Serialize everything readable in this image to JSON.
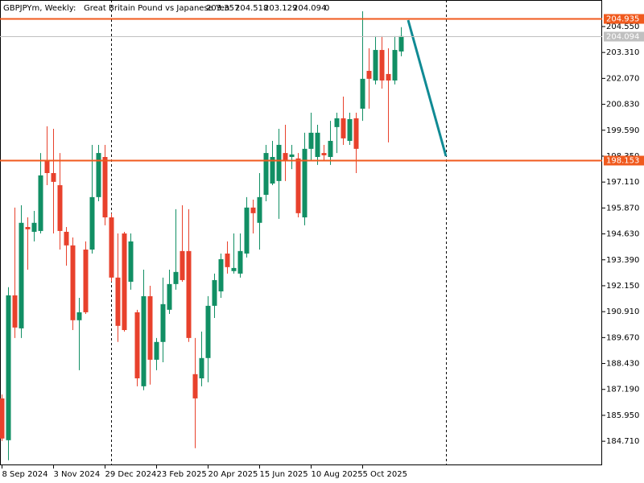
{
  "chart_data": {
    "type": "candlestick",
    "symbol": "GBPJPYm, Weekly:",
    "description": "Great Britain Pound vs Japanese Yen",
    "quote": [
      203.357,
      204.518,
      203.129,
      204.094
    ],
    "volume": 0,
    "up_color": "#118f64",
    "down_color": "#e8412c",
    "categories": [
      "8 Sep 2024",
      null,
      null,
      null,
      null,
      null,
      null,
      null,
      "3 Nov 2024",
      null,
      null,
      null,
      null,
      null,
      null,
      null,
      "29 Dec 2024",
      null,
      null,
      null,
      null,
      null,
      null,
      null,
      "23 Feb 2025",
      null,
      null,
      null,
      null,
      null,
      null,
      null,
      "20 Apr 2025",
      null,
      null,
      null,
      null,
      null,
      null,
      null,
      "15 Jun 2025",
      null,
      null,
      null,
      null,
      null,
      null,
      null,
      "10 Aug 2025",
      null,
      null,
      null,
      null,
      null,
      null,
      null,
      "5 Oct 2025",
      null,
      null,
      null,
      null,
      null,
      null
    ],
    "open": [
      186.76,
      184.76,
      191.69,
      190.11,
      194.96,
      194.73,
      194.77,
      198.12,
      197.54,
      196.96,
      194.73,
      194.08,
      190.5,
      193.88,
      193.88,
      196.39,
      198.31,
      195.42,
      192.54,
      194.65,
      192.34,
      190.88,
      187.34,
      191.65,
      188.61,
      189.46,
      191.0,
      192.23,
      193.81,
      193.81,
      187.92,
      187.72,
      188.69,
      191.19,
      191.88,
      193.69,
      192.85,
      192.73,
      193.69,
      195.89,
      195.16,
      196.5,
      197.04,
      197.16,
      198.5,
      198.31,
      198.24,
      195.42,
      198.7,
      198.31,
      198.5,
      198.31,
      199.74,
      200.16,
      199.08,
      200.16,
      200.62,
      202.43,
      201.97,
      203.43,
      202.28,
      201.97,
      203.357
    ],
    "high": [
      186.95,
      192.08,
      195.89,
      196.0,
      195.42,
      195.73,
      198.5,
      199.78,
      199.66,
      198.5,
      194.96,
      194.46,
      191.57,
      194.27,
      198.89,
      198.89,
      198.89,
      195.62,
      194.65,
      194.73,
      194.65,
      191.0,
      192.92,
      192.15,
      189.65,
      192.54,
      192.92,
      195.81,
      196.0,
      195.81,
      189.65,
      189.96,
      191.65,
      192.73,
      193.69,
      194.27,
      194.65,
      194.65,
      196.39,
      196.27,
      197.54,
      198.89,
      199.08,
      199.66,
      199.85,
      198.89,
      198.5,
      199.47,
      200.43,
      199.85,
      198.89,
      200.04,
      200.43,
      201.2,
      200.43,
      200.43,
      205.28,
      203.51,
      204.09,
      204.09,
      203.51,
      204.09,
      204.518
    ],
    "low": [
      184.72,
      183.8,
      189.65,
      189.65,
      192.92,
      194.27,
      194.65,
      196.96,
      194.65,
      193.88,
      193.11,
      190.03,
      188.11,
      190.8,
      193.69,
      196.19,
      195.04,
      192.34,
      189.46,
      189.96,
      191.96,
      187.34,
      187.15,
      187.42,
      188.11,
      188.49,
      190.8,
      191.96,
      192.34,
      189.46,
      184.38,
      187.34,
      187.53,
      190.61,
      191.57,
      192.73,
      192.73,
      192.54,
      193.5,
      194.65,
      193.88,
      196.19,
      196.96,
      195.35,
      197.16,
      197.73,
      195.42,
      195.04,
      198.12,
      197.93,
      198.12,
      197.93,
      198.5,
      198.89,
      198.89,
      197.54,
      200.04,
      200.62,
      201.78,
      201.58,
      199.01,
      201.78,
      203.129
    ],
    "close": [
      184.84,
      191.69,
      190.15,
      195.16,
      194.85,
      195.16,
      197.43,
      197.54,
      197.12,
      194.77,
      194.08,
      190.5,
      190.88,
      190.88,
      196.39,
      198.5,
      195.42,
      192.54,
      190.23,
      190.03,
      194.27,
      187.72,
      191.65,
      188.61,
      189.46,
      191.27,
      192.23,
      192.81,
      192.42,
      189.65,
      186.76,
      188.69,
      191.19,
      192.42,
      193.42,
      193.04,
      193.0,
      193.81,
      195.89,
      195.62,
      196.39,
      198.5,
      198.31,
      198.89,
      198.12,
      198.43,
      195.62,
      198.7,
      199.47,
      199.47,
      198.39,
      199.08,
      200.16,
      199.2,
      200.12,
      198.7,
      202.05,
      202.05,
      203.43,
      201.97,
      201.97,
      203.43,
      204.094
    ],
    "ylim": [
      183.56,
      205.82
    ],
    "yticks": [
      {
        "value": 204.55,
        "label": "204.550"
      },
      {
        "value": 203.31,
        "label": "203.310"
      },
      {
        "value": 202.07,
        "label": "202.070"
      },
      {
        "value": 200.83,
        "label": "200.830"
      },
      {
        "value": 199.59,
        "label": "199.590"
      },
      {
        "value": 198.35,
        "label": "198.350"
      },
      {
        "value": 197.11,
        "label": "197.110"
      },
      {
        "value": 195.87,
        "label": "195.870"
      },
      {
        "value": 194.63,
        "label": "194.630"
      },
      {
        "value": 193.39,
        "label": "193.390"
      },
      {
        "value": 192.15,
        "label": "192.150"
      },
      {
        "value": 190.91,
        "label": "190.910"
      },
      {
        "value": 189.67,
        "label": "189.670"
      },
      {
        "value": 188.43,
        "label": "188.430"
      },
      {
        "value": 187.19,
        "label": "187.190"
      },
      {
        "value": 185.95,
        "label": "185.950"
      },
      {
        "value": 184.71,
        "label": "184.710"
      }
    ],
    "price_lines": [
      {
        "value": 204.935,
        "color": "#f05a1e"
      },
      {
        "value": 204.094,
        "color": "#c0c0c0"
      },
      {
        "value": 198.153,
        "color": "#f05a1e"
      }
    ]
  }
}
